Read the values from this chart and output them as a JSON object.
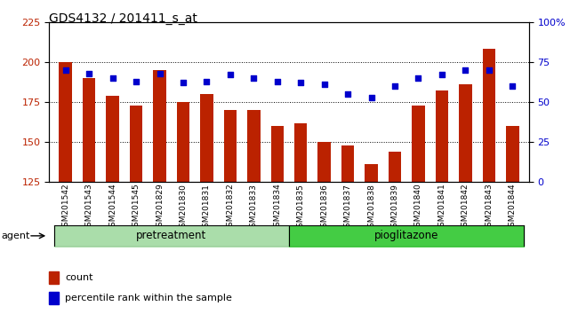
{
  "title": "GDS4132 / 201411_s_at",
  "categories": [
    "GSM201542",
    "GSM201543",
    "GSM201544",
    "GSM201545",
    "GSM201829",
    "GSM201830",
    "GSM201831",
    "GSM201832",
    "GSM201833",
    "GSM201834",
    "GSM201835",
    "GSM201836",
    "GSM201837",
    "GSM201838",
    "GSM201839",
    "GSM201840",
    "GSM201841",
    "GSM201842",
    "GSM201843",
    "GSM201844"
  ],
  "counts": [
    200,
    190,
    179,
    173,
    195,
    175,
    180,
    170,
    170,
    160,
    162,
    150,
    148,
    136,
    144,
    173,
    182,
    186,
    208,
    160
  ],
  "percentiles": [
    70,
    68,
    65,
    63,
    68,
    62,
    63,
    67,
    65,
    63,
    62,
    61,
    55,
    53,
    60,
    65,
    67,
    70,
    70,
    60
  ],
  "bar_color": "#bb2200",
  "dot_color": "#0000cc",
  "ylim_left": [
    125,
    225
  ],
  "ylim_right": [
    0,
    100
  ],
  "yticks_left": [
    125,
    150,
    175,
    200,
    225
  ],
  "yticks_right": [
    0,
    25,
    50,
    75,
    100
  ],
  "ytick_labels_right": [
    "0",
    "25",
    "50",
    "75",
    "100%"
  ],
  "pretreatment_count": 10,
  "group1_label": "pretreatment",
  "group2_label": "pioglitazone",
  "agent_label": "agent",
  "legend_count_label": "count",
  "legend_pct_label": "percentile rank within the sample",
  "group1_color": "#aaddaa",
  "group2_color": "#44cc44",
  "xtick_bg": "#c8c8c8",
  "fig_bg": "#ffffff",
  "title_fontsize": 10,
  "tick_fontsize": 6.5,
  "group_fontsize": 8.5
}
